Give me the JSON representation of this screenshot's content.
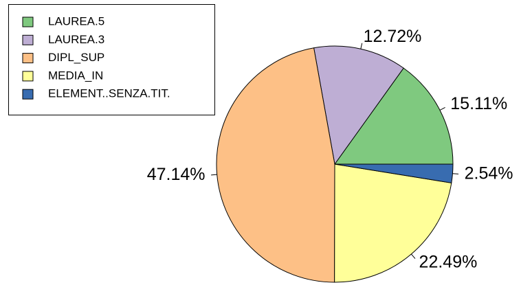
{
  "chart_data": {
    "type": "pie",
    "categories": [
      "LAUREA.5",
      "LAUREA.3",
      "DIPL_SUP",
      "MEDIA_IN",
      "ELEMENT..SENZA.TIT."
    ],
    "values": [
      15.11,
      12.72,
      47.14,
      22.49,
      2.54
    ],
    "value_labels": [
      "15.11%",
      "12.72%",
      "47.14%",
      "22.49%",
      "2.54%"
    ],
    "colors": [
      "#7fc97f",
      "#beaed4",
      "#fdc086",
      "#ffff99",
      "#386cb0"
    ],
    "legend": "topleft"
  }
}
